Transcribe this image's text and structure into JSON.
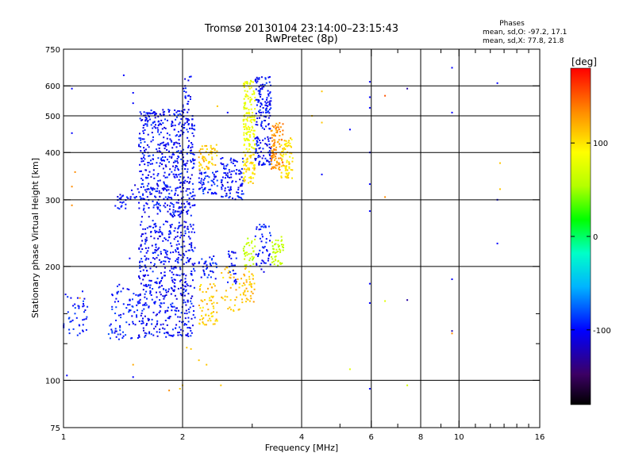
{
  "chart_data": {
    "type": "scatter",
    "title": "Tromsø 20130104 23:14:00–23:15:43",
    "subtitle": "RwPretec (8p)",
    "xlabel": "Frequency [MHz]",
    "ylabel": "Stationary phase Virtual Height [km]",
    "x_scale": "log",
    "y_scale": "log",
    "xlim": [
      1,
      16
    ],
    "ylim": [
      75,
      750
    ],
    "x_ticks": [
      1,
      2,
      4,
      6,
      8,
      10,
      16
    ],
    "x_tick_labels": [
      "1",
      "2",
      "4",
      "6",
      "8",
      "10",
      "16"
    ],
    "x_minor_ticks": [
      3,
      5,
      7,
      9,
      11,
      12,
      13,
      14,
      15
    ],
    "x_grid": [
      2,
      4,
      6,
      8,
      10
    ],
    "y_ticks": [
      75,
      100,
      200,
      300,
      400,
      500,
      600,
      750
    ],
    "y_tick_labels": [
      "75",
      "100",
      "200",
      "300",
      "400",
      "500",
      "600",
      "750"
    ],
    "y_minor_ticks": [
      125,
      150
    ],
    "y_grid": [
      100,
      200,
      300,
      400,
      500,
      600
    ],
    "grid": true,
    "stats": {
      "header": "Phases",
      "line_o": "mean, sd,O: -97.2, 17.1",
      "line_x": "mean, sd,X:  77.8, 21.8"
    },
    "colorbar": {
      "label": "[deg]",
      "range": [
        -180,
        180
      ],
      "ticks": [
        100,
        0,
        -100
      ],
      "tick_labels": [
        "100",
        "0",
        "-100"
      ],
      "colormap": "rainbow (black to red)"
    },
    "color_value": "phase [deg]",
    "clusters": [
      {
        "f": [
          1.0,
          1.15
        ],
        "h": [
          128,
          172
        ],
        "phase": -95,
        "n": 45
      },
      {
        "f": [
          1.3,
          1.55
        ],
        "h": [
          128,
          180
        ],
        "phase": -95,
        "n": 80
      },
      {
        "f": [
          1.55,
          2.15
        ],
        "h": [
          130,
          265
        ],
        "phase": -100,
        "n": 520
      },
      {
        "f": [
          1.55,
          2.15
        ],
        "h": [
          270,
          520
        ],
        "phase": -100,
        "n": 560
      },
      {
        "f": [
          1.35,
          1.45
        ],
        "h": [
          280,
          310
        ],
        "phase": -100,
        "n": 20
      },
      {
        "f": [
          1.45,
          1.6
        ],
        "h": [
          300,
          330
        ],
        "phase": -100,
        "n": 15
      },
      {
        "f": [
          2.0,
          2.1
        ],
        "h": [
          520,
          640
        ],
        "phase": -100,
        "n": 20
      },
      {
        "f": [
          2.2,
          2.45
        ],
        "h": [
          140,
          180
        ],
        "phase": 110,
        "n": 60
      },
      {
        "f": [
          2.2,
          2.45
        ],
        "h": [
          185,
          215
        ],
        "phase": -95,
        "n": 35
      },
      {
        "f": [
          2.2,
          2.45
        ],
        "h": [
          310,
          360
        ],
        "phase": -95,
        "n": 55
      },
      {
        "f": [
          2.2,
          2.45
        ],
        "h": [
          360,
          420
        ],
        "phase": 110,
        "n": 55
      },
      {
        "f": [
          2.5,
          2.85
        ],
        "h": [
          150,
          200
        ],
        "phase": 110,
        "n": 40
      },
      {
        "f": [
          2.5,
          2.85
        ],
        "h": [
          300,
          390
        ],
        "phase": -100,
        "n": 100
      },
      {
        "f": [
          2.6,
          2.75
        ],
        "h": [
          180,
          220
        ],
        "phase": -100,
        "n": 25
      },
      {
        "f": [
          2.85,
          3.05
        ],
        "h": [
          160,
          200
        ],
        "phase": 110,
        "n": 40
      },
      {
        "f": [
          2.85,
          3.05
        ],
        "h": [
          200,
          240
        ],
        "phase": 50,
        "n": 35
      },
      {
        "f": [
          2.85,
          3.05
        ],
        "h": [
          330,
          400
        ],
        "phase": 100,
        "n": 60
      },
      {
        "f": [
          2.85,
          3.05
        ],
        "h": [
          400,
          620
        ],
        "phase": 80,
        "n": 140
      },
      {
        "f": [
          3.05,
          3.35
        ],
        "h": [
          190,
          260
        ],
        "phase": -100,
        "n": 50
      },
      {
        "f": [
          3.05,
          3.35
        ],
        "h": [
          370,
          440
        ],
        "phase": -100,
        "n": 70
      },
      {
        "f": [
          3.05,
          3.35
        ],
        "h": [
          460,
          640
        ],
        "phase": -100,
        "n": 110
      },
      {
        "f": [
          3.35,
          3.6
        ],
        "h": [
          200,
          240
        ],
        "phase": 50,
        "n": 45
      },
      {
        "f": [
          3.35,
          3.6
        ],
        "h": [
          360,
          480
        ],
        "phase": 130,
        "n": 100
      },
      {
        "f": [
          3.55,
          3.8
        ],
        "h": [
          340,
          440
        ],
        "phase": 100,
        "n": 70
      }
    ],
    "points": [
      {
        "x": 1.02,
        "y": 103,
        "phase": -100
      },
      {
        "x": 1.05,
        "y": 590,
        "phase": -100
      },
      {
        "x": 1.05,
        "y": 450,
        "phase": -100
      },
      {
        "x": 1.07,
        "y": 355,
        "phase": 130
      },
      {
        "x": 1.05,
        "y": 290,
        "phase": 130
      },
      {
        "x": 1.05,
        "y": 325,
        "phase": 130
      },
      {
        "x": 1.1,
        "y": 165,
        "phase": 130
      },
      {
        "x": 1.42,
        "y": 640,
        "phase": -100
      },
      {
        "x": 1.5,
        "y": 575,
        "phase": -100
      },
      {
        "x": 1.5,
        "y": 540,
        "phase": -100
      },
      {
        "x": 1.5,
        "y": 110,
        "phase": 120
      },
      {
        "x": 1.5,
        "y": 102,
        "phase": -100
      },
      {
        "x": 1.47,
        "y": 210,
        "phase": -100
      },
      {
        "x": 1.85,
        "y": 94,
        "phase": 130
      },
      {
        "x": 1.97,
        "y": 95,
        "phase": 110
      },
      {
        "x": 2.0,
        "y": 97,
        "phase": 110
      },
      {
        "x": 2.05,
        "y": 122,
        "phase": 110
      },
      {
        "x": 2.1,
        "y": 121,
        "phase": 110
      },
      {
        "x": 2.2,
        "y": 113,
        "phase": 110
      },
      {
        "x": 2.3,
        "y": 110,
        "phase": 110
      },
      {
        "x": 2.5,
        "y": 97,
        "phase": 110
      },
      {
        "x": 2.1,
        "y": 635,
        "phase": -100
      },
      {
        "x": 2.45,
        "y": 530,
        "phase": 110
      },
      {
        "x": 2.6,
        "y": 510,
        "phase": -100
      },
      {
        "x": 4.25,
        "y": 500,
        "phase": 110
      },
      {
        "x": 4.5,
        "y": 480,
        "phase": 110
      },
      {
        "x": 4.5,
        "y": 580,
        "phase": 110
      },
      {
        "x": 4.5,
        "y": 350,
        "phase": -100
      },
      {
        "x": 5.3,
        "y": 460,
        "phase": -100
      },
      {
        "x": 5.3,
        "y": 107,
        "phase": 70
      },
      {
        "x": 5.95,
        "y": 615,
        "phase": -100
      },
      {
        "x": 5.95,
        "y": 560,
        "phase": -100
      },
      {
        "x": 5.95,
        "y": 525,
        "phase": -100
      },
      {
        "x": 5.95,
        "y": 400,
        "phase": -100
      },
      {
        "x": 5.95,
        "y": 330,
        "phase": -100
      },
      {
        "x": 5.95,
        "y": 280,
        "phase": -100
      },
      {
        "x": 5.95,
        "y": 180,
        "phase": -100
      },
      {
        "x": 5.95,
        "y": 160,
        "phase": -100
      },
      {
        "x": 5.95,
        "y": 95,
        "phase": -100
      },
      {
        "x": 6.5,
        "y": 565,
        "phase": 150
      },
      {
        "x": 6.5,
        "y": 305,
        "phase": 130
      },
      {
        "x": 6.5,
        "y": 162,
        "phase": 70
      },
      {
        "x": 7.4,
        "y": 590,
        "phase": -130
      },
      {
        "x": 7.4,
        "y": 163,
        "phase": -130
      },
      {
        "x": 7.4,
        "y": 97,
        "phase": 60
      },
      {
        "x": 9.6,
        "y": 670,
        "phase": -100
      },
      {
        "x": 9.6,
        "y": 510,
        "phase": -100
      },
      {
        "x": 9.6,
        "y": 185,
        "phase": -100
      },
      {
        "x": 9.6,
        "y": 135,
        "phase": -130
      },
      {
        "x": 9.6,
        "y": 133,
        "phase": 130
      },
      {
        "x": 12.5,
        "y": 610,
        "phase": -100
      },
      {
        "x": 12.5,
        "y": 300,
        "phase": -100
      },
      {
        "x": 12.5,
        "y": 230,
        "phase": -100
      },
      {
        "x": 12.7,
        "y": 375,
        "phase": 110
      },
      {
        "x": 12.7,
        "y": 320,
        "phase": 110
      }
    ]
  }
}
